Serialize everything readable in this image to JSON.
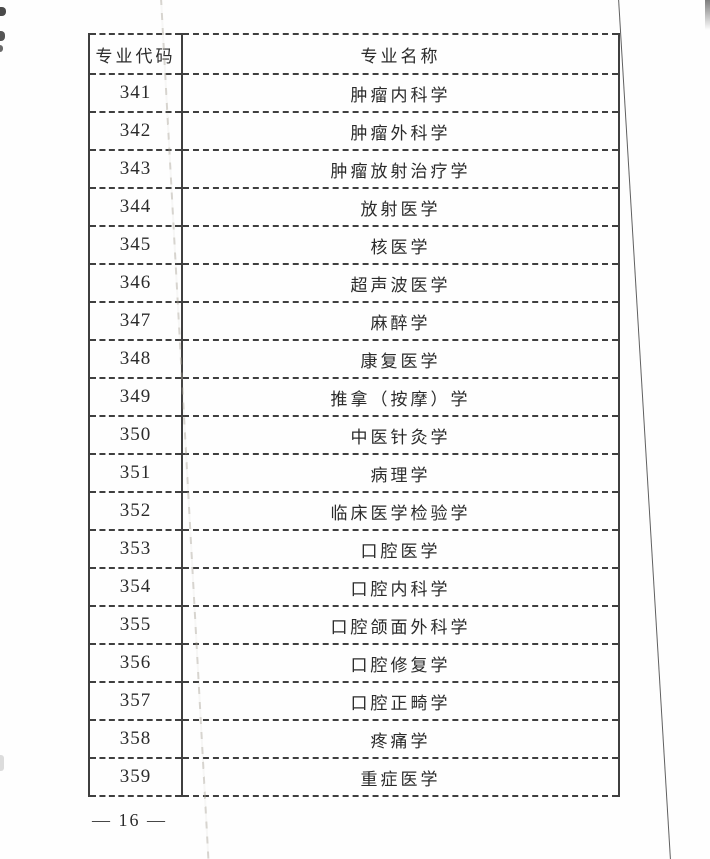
{
  "colors": {
    "paper": "#fefefe",
    "ink": "#2b2b2b",
    "table_border": "#3f3f3f"
  },
  "table": {
    "headers": [
      "专业代码",
      "专业名称"
    ],
    "rows": [
      {
        "code": "341",
        "name": "肿瘤内科学"
      },
      {
        "code": "342",
        "name": "肿瘤外科学"
      },
      {
        "code": "343",
        "name": "肿瘤放射治疗学"
      },
      {
        "code": "344",
        "name": "放射医学"
      },
      {
        "code": "345",
        "name": "核医学"
      },
      {
        "code": "346",
        "name": "超声波医学"
      },
      {
        "code": "347",
        "name": "麻醉学"
      },
      {
        "code": "348",
        "name": "康复医学"
      },
      {
        "code": "349",
        "name": "推拿（按摩）学"
      },
      {
        "code": "350",
        "name": "中医针灸学"
      },
      {
        "code": "351",
        "name": "病理学"
      },
      {
        "code": "352",
        "name": "临床医学检验学"
      },
      {
        "code": "353",
        "name": "口腔医学"
      },
      {
        "code": "354",
        "name": "口腔内科学"
      },
      {
        "code": "355",
        "name": "口腔颌面外科学"
      },
      {
        "code": "356",
        "name": "口腔修复学"
      },
      {
        "code": "357",
        "name": "口腔正畸学"
      },
      {
        "code": "358",
        "name": "疼痛学"
      },
      {
        "code": "359",
        "name": "重症医学"
      }
    ]
  },
  "footer": {
    "page_number": "— 16 —"
  }
}
